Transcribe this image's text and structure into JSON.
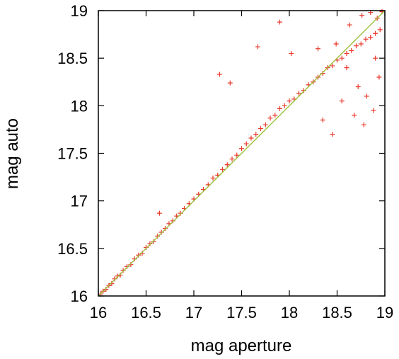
{
  "chart_data": {
    "type": "scatter",
    "xlabel": "mag aperture",
    "ylabel": "mag auto",
    "xlim": [
      16,
      19
    ],
    "ylim": [
      16,
      19
    ],
    "xticks": [
      "16",
      "16.5",
      "17",
      "17.5",
      "18",
      "18.5",
      "19"
    ],
    "yticks": [
      "16",
      "16.5",
      "17",
      "17.5",
      "18",
      "18.5",
      "19"
    ],
    "grid": false,
    "marker": "plus",
    "colors": {
      "points": "#e8392b",
      "reference_line": "#9bbf3a"
    },
    "reference_line": {
      "x": [
        16,
        19
      ],
      "y": [
        16,
        19
      ]
    },
    "series": [
      {
        "x": [
          16.02,
          16.05,
          16.08,
          16.11,
          16.14,
          16.17,
          16.2,
          16.23,
          16.26,
          16.3,
          16.34,
          16.38,
          16.42,
          16.46,
          16.5,
          16.54,
          16.58,
          16.62,
          16.66,
          16.7,
          16.74,
          16.78,
          16.82,
          16.86,
          16.9,
          16.95,
          17.0,
          17.05,
          17.1,
          17.15,
          17.2,
          17.25,
          17.3,
          17.35,
          17.4,
          17.45,
          17.5,
          17.55,
          17.6,
          17.65,
          17.7,
          17.75,
          17.8,
          17.85,
          17.9,
          17.95,
          18.0,
          18.05,
          18.1,
          18.15,
          18.2,
          18.25,
          18.3,
          18.35,
          18.4,
          18.45,
          18.5,
          18.55,
          18.6,
          18.65,
          18.7,
          18.75,
          18.8,
          18.85,
          18.9,
          18.95,
          16.64,
          17.27,
          17.38,
          17.67,
          17.9,
          18.02,
          18.3,
          18.49,
          18.63,
          18.76,
          18.85,
          18.92,
          18.97,
          18.55,
          18.68,
          18.81,
          18.88,
          18.94,
          18.35,
          18.72,
          18.6,
          18.9,
          18.45,
          18.78
        ],
        "y": [
          16.02,
          16.05,
          16.07,
          16.11,
          16.13,
          16.18,
          16.21,
          16.22,
          16.27,
          16.31,
          16.33,
          16.39,
          16.43,
          16.45,
          16.51,
          16.55,
          16.57,
          16.63,
          16.67,
          16.71,
          16.76,
          16.79,
          16.84,
          16.87,
          16.92,
          16.97,
          17.02,
          17.07,
          17.12,
          17.17,
          17.24,
          17.27,
          17.33,
          17.38,
          17.44,
          17.48,
          17.55,
          17.6,
          17.66,
          17.7,
          17.76,
          17.8,
          17.87,
          17.9,
          17.97,
          18.0,
          18.05,
          18.07,
          18.13,
          18.16,
          18.22,
          18.25,
          18.3,
          18.34,
          18.4,
          18.42,
          18.48,
          18.5,
          18.55,
          18.58,
          18.63,
          18.65,
          18.7,
          18.72,
          18.76,
          18.8,
          16.87,
          18.33,
          18.24,
          18.62,
          18.88,
          18.55,
          18.6,
          18.65,
          18.85,
          18.95,
          18.98,
          18.92,
          18.99,
          18.05,
          17.9,
          18.1,
          17.95,
          18.3,
          17.85,
          18.2,
          18.4,
          18.5,
          17.7,
          17.8
        ]
      }
    ]
  }
}
